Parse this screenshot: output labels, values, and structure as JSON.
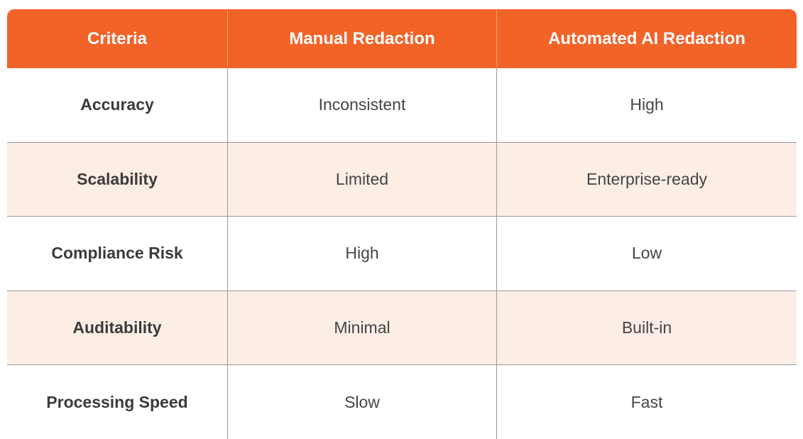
{
  "table": {
    "header": [
      "Criteria",
      "Manual Redaction",
      "Automated AI Redaction"
    ],
    "rows": [
      [
        "Accuracy",
        "Inconsistent",
        "High"
      ],
      [
        "Scalability",
        "Limited",
        "Enterprise-ready"
      ],
      [
        "Compliance Risk",
        "High",
        "Low"
      ],
      [
        "Auditability",
        "Minimal",
        "Built-in"
      ],
      [
        "Processing Speed",
        "Slow",
        "Fast"
      ]
    ]
  }
}
